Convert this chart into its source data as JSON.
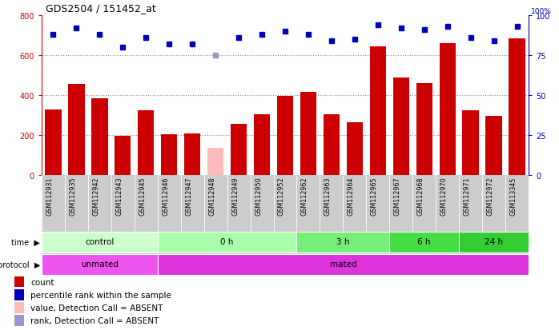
{
  "title": "GDS2504 / 151452_at",
  "samples": [
    "GSM112931",
    "GSM112935",
    "GSM112942",
    "GSM112943",
    "GSM112945",
    "GSM112946",
    "GSM112947",
    "GSM112948",
    "GSM112949",
    "GSM112950",
    "GSM112952",
    "GSM112962",
    "GSM112963",
    "GSM112964",
    "GSM112965",
    "GSM112967",
    "GSM112968",
    "GSM112970",
    "GSM112971",
    "GSM112972",
    "GSM113345"
  ],
  "counts": [
    330,
    455,
    385,
    195,
    325,
    205,
    210,
    135,
    255,
    305,
    395,
    415,
    305,
    265,
    645,
    490,
    460,
    660,
    325,
    295,
    685
  ],
  "absent_mask": [
    false,
    false,
    false,
    false,
    false,
    false,
    false,
    true,
    false,
    false,
    false,
    false,
    false,
    false,
    false,
    false,
    false,
    false,
    false,
    false,
    false
  ],
  "percentile_ranks": [
    88,
    92,
    88,
    80,
    86,
    82,
    82,
    75,
    86,
    88,
    90,
    88,
    84,
    85,
    94,
    92,
    91,
    93,
    86,
    84,
    93
  ],
  "absent_rank_mask": [
    false,
    false,
    false,
    false,
    false,
    false,
    false,
    true,
    false,
    false,
    false,
    false,
    false,
    false,
    false,
    false,
    false,
    false,
    false,
    false,
    false
  ],
  "bar_color_present": "#cc0000",
  "bar_color_absent": "#ffbbbb",
  "rank_color_present": "#0000bb",
  "rank_color_absent": "#9999cc",
  "ylim_left": [
    0,
    800
  ],
  "ylim_right": [
    0,
    100
  ],
  "yticks_left": [
    0,
    200,
    400,
    600,
    800
  ],
  "yticks_right": [
    0,
    25,
    50,
    75,
    100
  ],
  "time_groups": [
    {
      "label": "control",
      "start": 0,
      "end": 5,
      "color": "#ccffcc"
    },
    {
      "label": "0 h",
      "start": 5,
      "end": 11,
      "color": "#aaffaa"
    },
    {
      "label": "3 h",
      "start": 11,
      "end": 15,
      "color": "#77ee77"
    },
    {
      "label": "6 h",
      "start": 15,
      "end": 18,
      "color": "#44dd44"
    },
    {
      "label": "24 h",
      "start": 18,
      "end": 21,
      "color": "#33cc33"
    }
  ],
  "protocol_groups": [
    {
      "label": "unmated",
      "start": 0,
      "end": 5,
      "color": "#ee55ee"
    },
    {
      "label": "mated",
      "start": 5,
      "end": 21,
      "color": "#dd33dd"
    }
  ],
  "legend_items": [
    {
      "label": "count",
      "color": "#cc0000"
    },
    {
      "label": "percentile rank within the sample",
      "color": "#0000bb"
    },
    {
      "label": "value, Detection Call = ABSENT",
      "color": "#ffbbbb"
    },
    {
      "label": "rank, Detection Call = ABSENT",
      "color": "#9999cc"
    }
  ],
  "bg_color": "#ffffff",
  "grid_color": "#888888",
  "label_bg": "#cccccc",
  "time_label_color": "#333333",
  "protocol_label_color": "#333333"
}
